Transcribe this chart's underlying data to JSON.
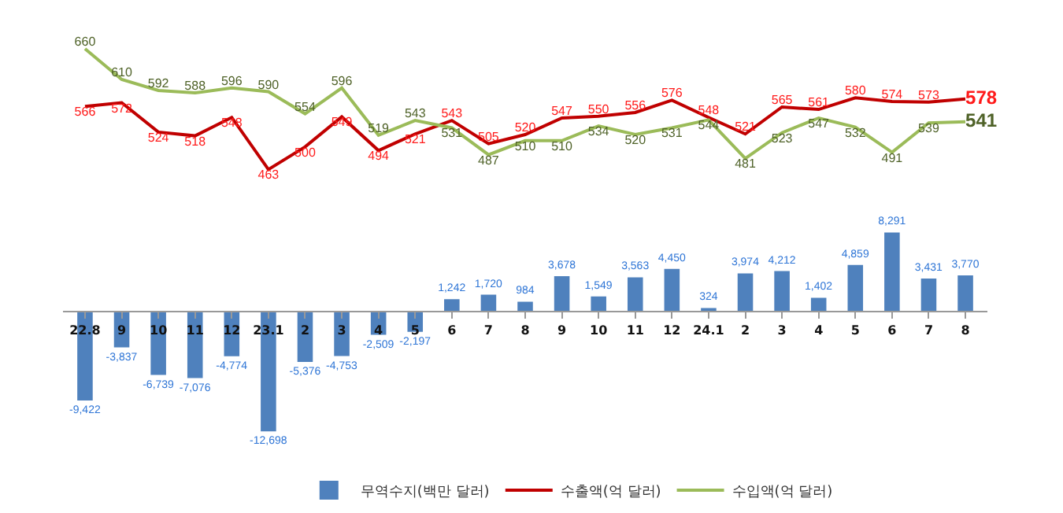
{
  "chart_data": [
    {
      "type": "line",
      "categories": [
        "22.8",
        "9",
        "10",
        "11",
        "12",
        "23.1",
        "2",
        "3",
        "4",
        "5",
        "6",
        "7",
        "8",
        "9",
        "10",
        "11",
        "12",
        "24.1",
        "2",
        "3",
        "4",
        "5",
        "6",
        "7",
        "8"
      ],
      "series": [
        {
          "name": "수출액(억 달러)",
          "color": "#c00000",
          "values": [
            566,
            572,
            524,
            518,
            548,
            463,
            500,
            549,
            494,
            521,
            543,
            505,
            520,
            547,
            550,
            556,
            576,
            548,
            521,
            565,
            561,
            580,
            574,
            573,
            578
          ]
        },
        {
          "name": "수입액(억 달러)",
          "color": "#9bbb59",
          "values": [
            660,
            610,
            592,
            588,
            596,
            590,
            554,
            596,
            519,
            543,
            531,
            487,
            510,
            510,
            534,
            520,
            531,
            544,
            481,
            523,
            547,
            532,
            491,
            539,
            541
          ]
        }
      ],
      "data_labels": true,
      "legend": "bottom",
      "marker": "none",
      "line_style": "solid",
      "tick_labels": false
    },
    {
      "type": "bar",
      "categories": [
        "22.8",
        "9",
        "10",
        "11",
        "12",
        "23.1",
        "2",
        "3",
        "4",
        "5",
        "6",
        "7",
        "8",
        "9",
        "10",
        "11",
        "12",
        "24.1",
        "2",
        "3",
        "4",
        "5",
        "6",
        "7",
        "8"
      ],
      "series": [
        {
          "name": "무역수지(백만 달러)",
          "color": "#4f81bd",
          "values": [
            -9422,
            -3837,
            -6739,
            -7076,
            -4774,
            -12698,
            -5376,
            -4753,
            -2509,
            -2197,
            1242,
            1720,
            984,
            3678,
            1549,
            3563,
            4450,
            324,
            3974,
            4212,
            1402,
            4859,
            8291,
            3431,
            3770
          ],
          "value_labels": [
            "-9,422",
            "-3,837",
            "-6,739",
            "-7,076",
            "-4,774",
            "-12,698",
            "-5,376",
            "-4,753",
            "-2,509",
            "-2,197",
            "1,242",
            "1,720",
            "984",
            "3,678",
            "1,549",
            "3,563",
            "4,450",
            "324",
            "3,974",
            "4,212",
            "1,402",
            "4,859",
            "8,291",
            "3,431",
            "3,770"
          ]
        }
      ],
      "legend": "bottom",
      "tick_labels": "x"
    }
  ]
}
